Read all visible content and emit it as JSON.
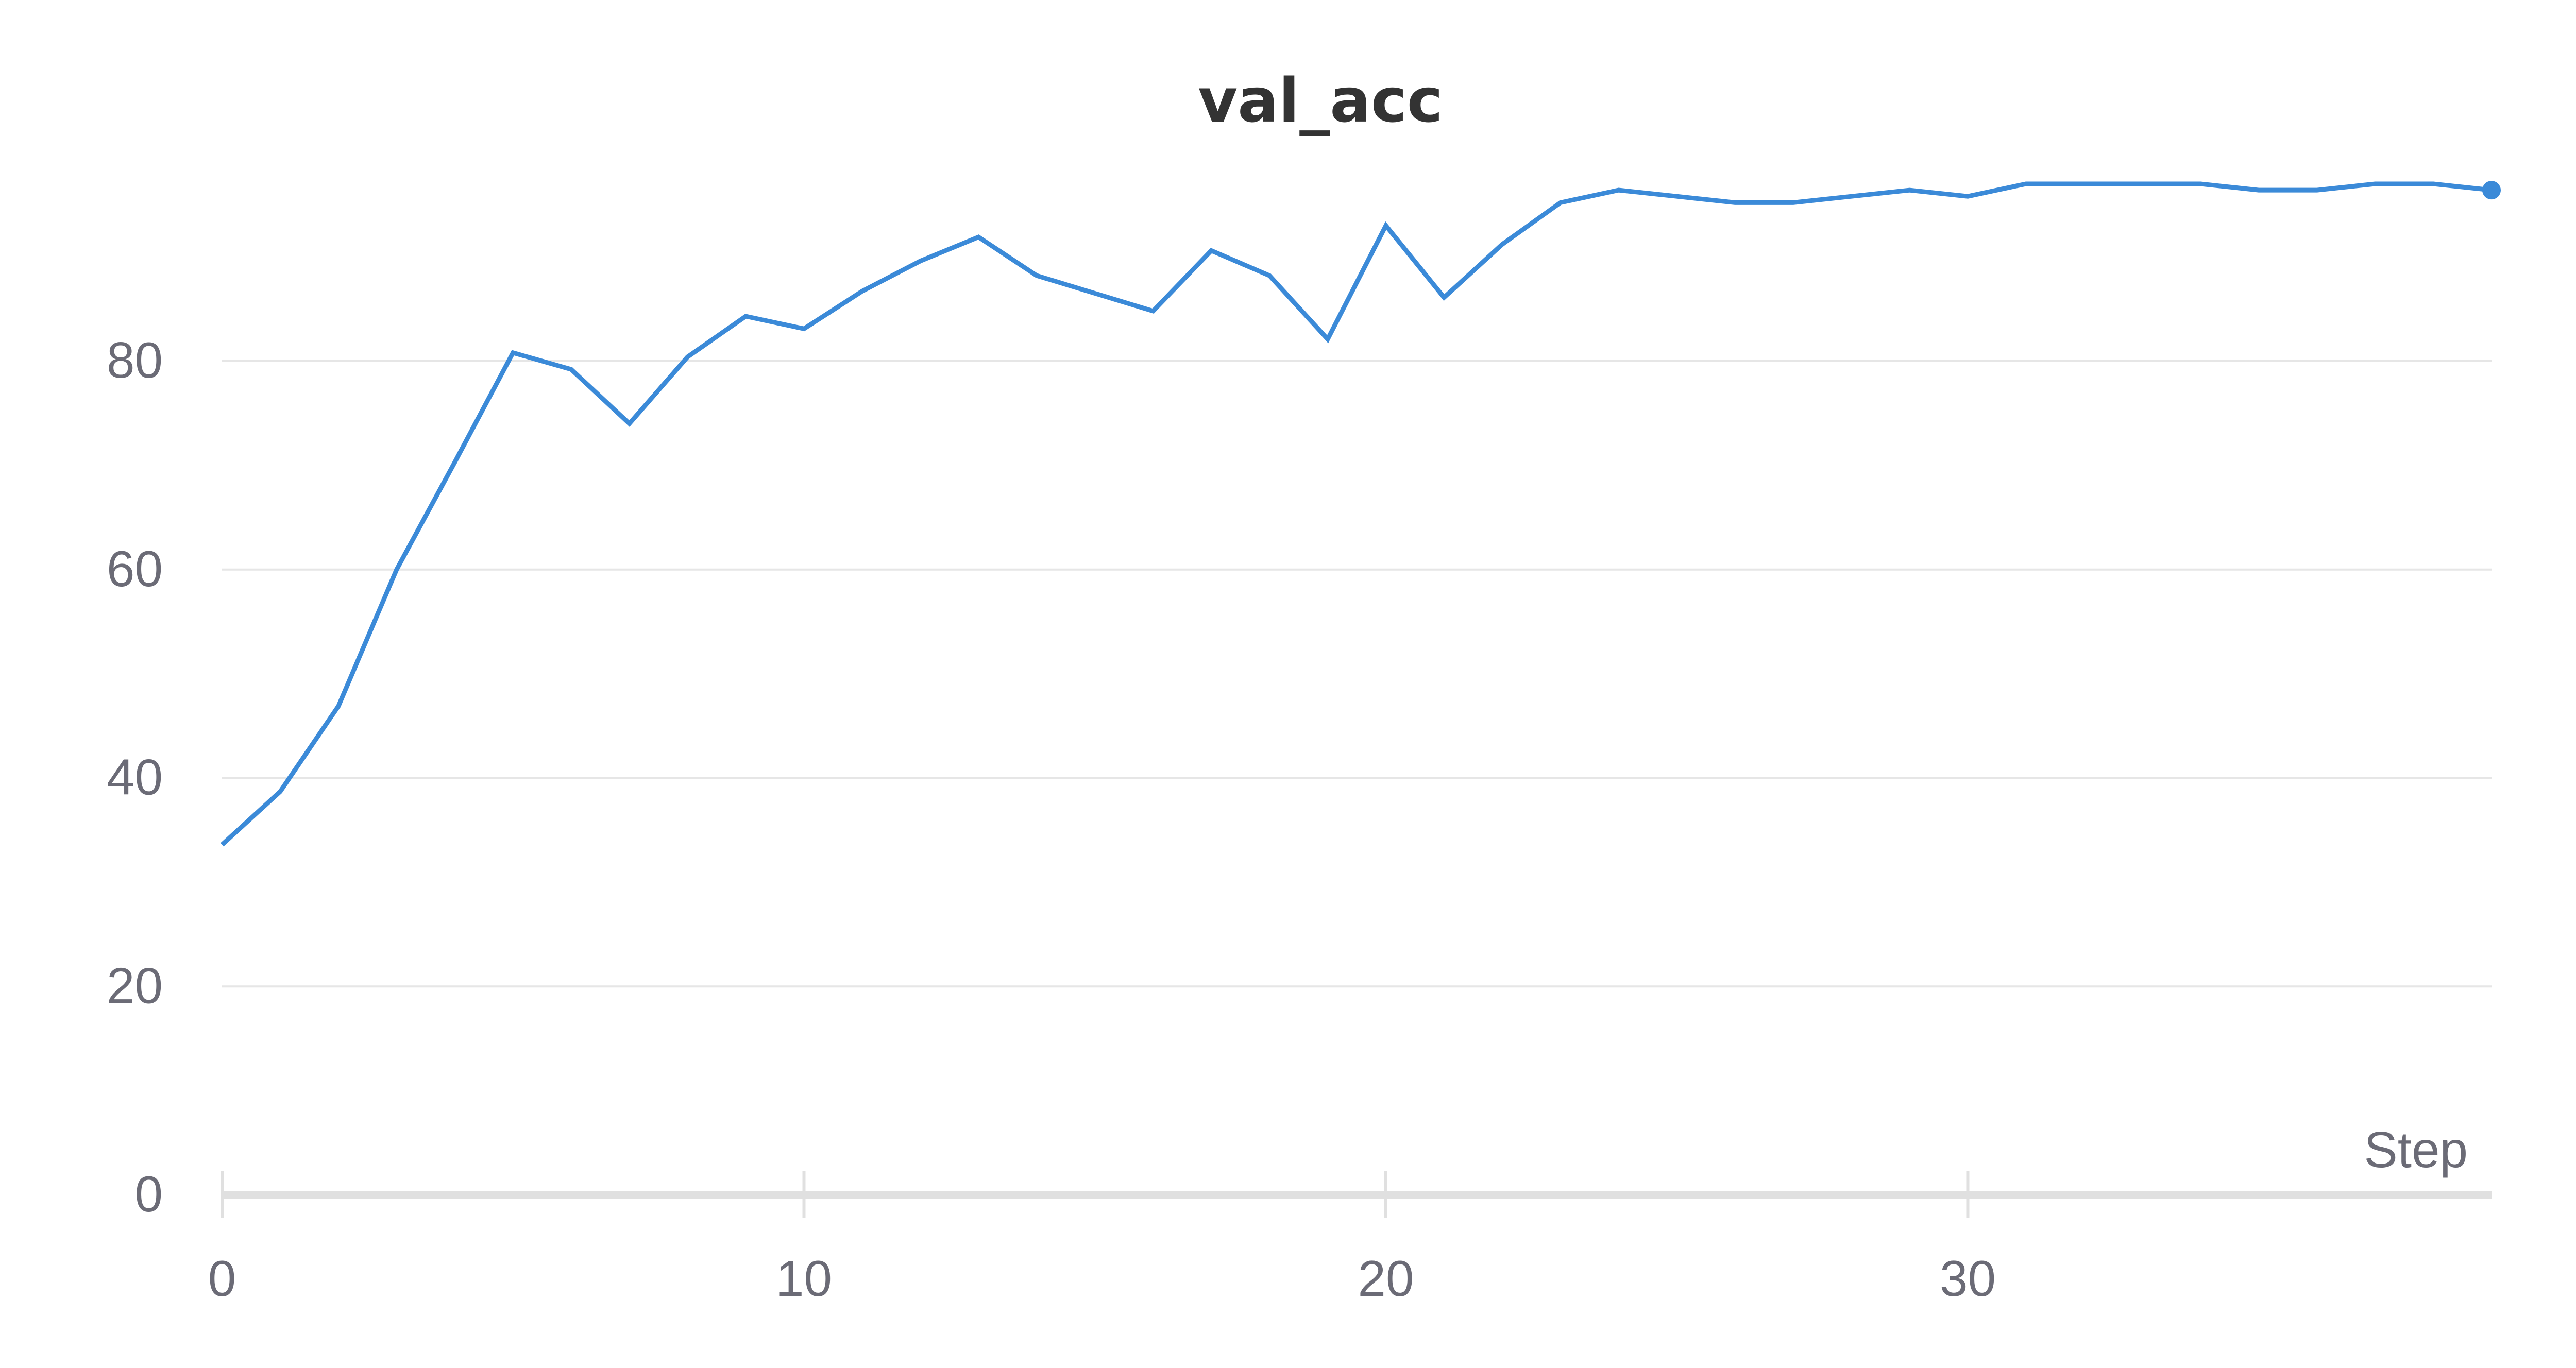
{
  "colors": {
    "line": "#3b8ad8",
    "grid": "#e6e6e6",
    "axis": "#e0e0e0",
    "tick_text": "#6b6b76",
    "title_text": "#333333"
  },
  "chart_data": {
    "type": "line",
    "title": "val_acc",
    "xlabel": "Step",
    "ylabel": "",
    "xlim": [
      0,
      39
    ],
    "ylim": [
      0,
      100
    ],
    "grid": true,
    "legend": "none",
    "x_ticks": [
      0,
      10,
      20,
      30
    ],
    "y_ticks": [
      0,
      20,
      40,
      60,
      80
    ],
    "x_tick_labels": [
      "0",
      "10",
      "20",
      "30"
    ],
    "y_tick_labels": [
      "0",
      "20",
      "40",
      "60",
      "80"
    ],
    "series": [
      {
        "x": [
          0,
          1,
          2,
          3,
          4,
          5,
          6,
          7,
          8,
          9,
          10,
          11,
          12,
          13,
          14,
          15,
          16,
          17,
          18,
          19,
          20,
          21,
          22,
          23,
          24,
          25,
          26,
          27,
          28,
          29,
          30,
          31,
          32,
          33,
          34,
          35,
          36,
          37,
          38,
          39
        ],
        "y": [
          33.6,
          38.7,
          46.9,
          60.0,
          70.3,
          80.8,
          79.2,
          74.0,
          80.4,
          84.3,
          83.1,
          86.7,
          89.6,
          91.9,
          88.2,
          86.5,
          84.8,
          90.6,
          88.2,
          82.1,
          93.0,
          86.1,
          91.2,
          95.2,
          96.4,
          95.8,
          95.2,
          95.2,
          95.8,
          96.4,
          95.8,
          97.0,
          97.0,
          97.0,
          97.0,
          96.4,
          96.4,
          97.0,
          97.0,
          96.4
        ]
      }
    ]
  }
}
